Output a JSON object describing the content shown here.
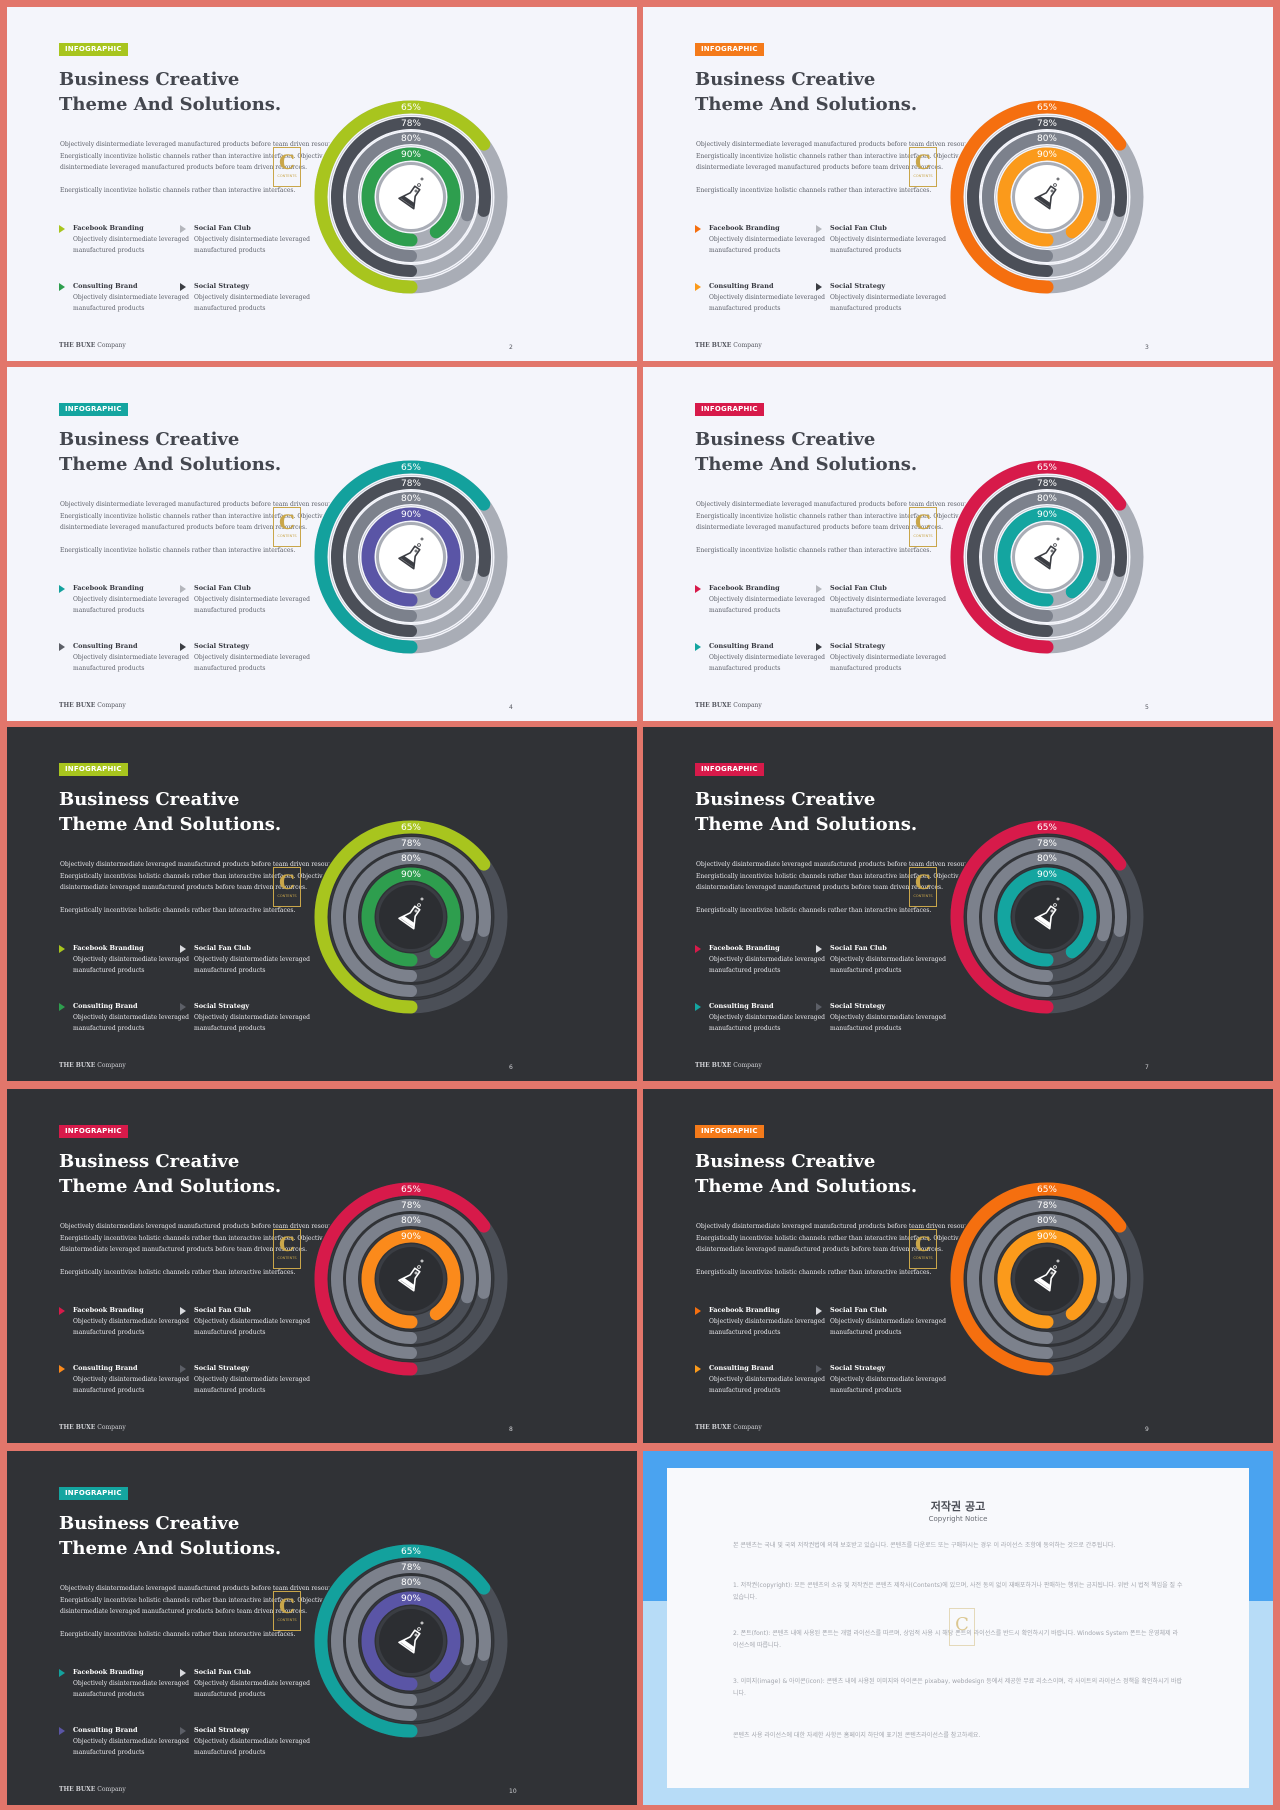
{
  "slide_common": {
    "tag": "INFOGRAPHIC",
    "title_line1": "Business Creative",
    "title_line2": "Theme And Solutions.",
    "para_lines": [
      "Objectively disintermediate leveraged manufactured products before team driven resources.",
      "Energistically incentivize holistic channels rather than interactive interfaces. Objectively",
      "disintermediate leveraged manufactured products before team driven resources."
    ],
    "para2": "Energistically incentivize holistic channels rather than interactive interfaces.",
    "logo_letter": "C",
    "logo_text": "CONTENTS",
    "features": [
      {
        "title": "Facebook Branding",
        "desc1": "Objectively disintermediate leveraged",
        "desc2": "manufactured products"
      },
      {
        "title": "Social Fan Club",
        "desc1": "Objectively disintermediate leveraged",
        "desc2": "manufactured products"
      },
      {
        "title": "Consulting Brand",
        "desc1": "Objectively disintermediate leveraged",
        "desc2": "manufactured products"
      },
      {
        "title": "Social Strategy",
        "desc1": "Objectively disintermediate leveraged",
        "desc2": "manufactured products"
      }
    ],
    "footer_bold": "THE BUXE",
    "footer_rest": " Company",
    "rings": [
      {
        "label": "65%",
        "value": 0.65
      },
      {
        "label": "78%",
        "value": 0.78
      },
      {
        "label": "80%",
        "value": 0.8
      },
      {
        "label": "90%",
        "value": 0.9
      }
    ]
  },
  "slides": [
    {
      "theme": "light",
      "page": "2",
      "tag_color": "#a8c51e",
      "outer": "#a8c51e",
      "inner": "#2e9e4e",
      "arrows": [
        "#a8c51e",
        "#b4b6bc",
        "#2e9e4e",
        "#3b3d43"
      ]
    },
    {
      "theme": "light",
      "page": "3",
      "tag_color": "#f47a1a",
      "outer": "#f56f0f",
      "inner": "#fb9a1b",
      "arrows": [
        "#f56f0f",
        "#b4b6bc",
        "#fb9a1b",
        "#3b3d43"
      ]
    },
    {
      "theme": "light",
      "page": "4",
      "tag_color": "#14a5a0",
      "outer": "#13a19d",
      "inner": "#5a55a6",
      "arrows": [
        "#13a19d",
        "#b4b6bc",
        "#5c5f67",
        "#3b3d43"
      ]
    },
    {
      "theme": "light",
      "page": "5",
      "tag_color": "#d71a4a",
      "outer": "#d71a4a",
      "inner": "#14a5a0",
      "arrows": [
        "#d71a4a",
        "#b4b6bc",
        "#14a5a0",
        "#3b3d43"
      ]
    },
    {
      "theme": "dark",
      "page": "6",
      "tag_color": "#a8c51e",
      "outer": "#a8c51e",
      "inner": "#2e9e4e",
      "arrows": [
        "#a8c51e",
        "#d9dade",
        "#2e9e4e",
        "#5c5f67"
      ]
    },
    {
      "theme": "dark",
      "page": "7",
      "tag_color": "#d71a4a",
      "outer": "#d71a4a",
      "inner": "#14a5a0",
      "arrows": [
        "#d71a4a",
        "#d9dade",
        "#14a5a0",
        "#5c5f67"
      ]
    },
    {
      "theme": "dark",
      "page": "8",
      "tag_color": "#d71a4a",
      "outer": "#d71a4a",
      "inner": "#fb8a1b",
      "arrows": [
        "#d71a4a",
        "#d9dade",
        "#fb8a1b",
        "#5c5f67"
      ]
    },
    {
      "theme": "dark",
      "page": "9",
      "tag_color": "#f47a1a",
      "outer": "#f56f0f",
      "inner": "#fb9a1b",
      "arrows": [
        "#f56f0f",
        "#d9dade",
        "#fb9a1b",
        "#5c5f67"
      ]
    },
    {
      "theme": "dark",
      "page": "10",
      "tag_color": "#14a5a0",
      "outer": "#13a19d",
      "inner": "#5a55a6",
      "arrows": [
        "#13a19d",
        "#d9dade",
        "#5a55a6",
        "#5c5f67"
      ]
    }
  ],
  "notice": {
    "title": "저작권 공고",
    "subtitle": "Copyright Notice",
    "lines": [
      "본 콘텐츠는 국내 및 국외 저작권법에 의해 보호받고 있습니다. 콘텐츠를 다운로드 또는 구매하시는 경우 이 라이선스 조항에 동의하는 것으로 간주됩니다.",
      "1. 저작권(copyright): 모든 콘텐츠의 소유 및 저작권은 콘텐츠 제작사(Contents)에 있으며, 사전 동의 없이 재배포하거나 판매하는 행위는 금지됩니다. 위반 시 법적 책임을 질 수 있습니다.",
      "2. 폰트(font): 콘텐츠 내에 사용된 폰트는 개별 라이선스를 따르며, 상업적 사용 시 해당 폰트의 라이선스를 반드시 확인하시기 바랍니다. Windows System 폰트는 운영체제 라이선스에 따릅니다.",
      "3. 이미지(image) & 아이콘(icon): 콘텐츠 내에 사용된 이미지와 아이콘은 pixabay, webdesign 등에서 제공한 무료 리소스이며, 각 사이트의 라이선스 정책을 확인하시기 바랍니다.",
      "콘텐츠 사용 라이선스에 대한 자세한 사항은 홈페이지 하단에 표기된 콘텐츠라이선스를 참고하세요."
    ]
  }
}
